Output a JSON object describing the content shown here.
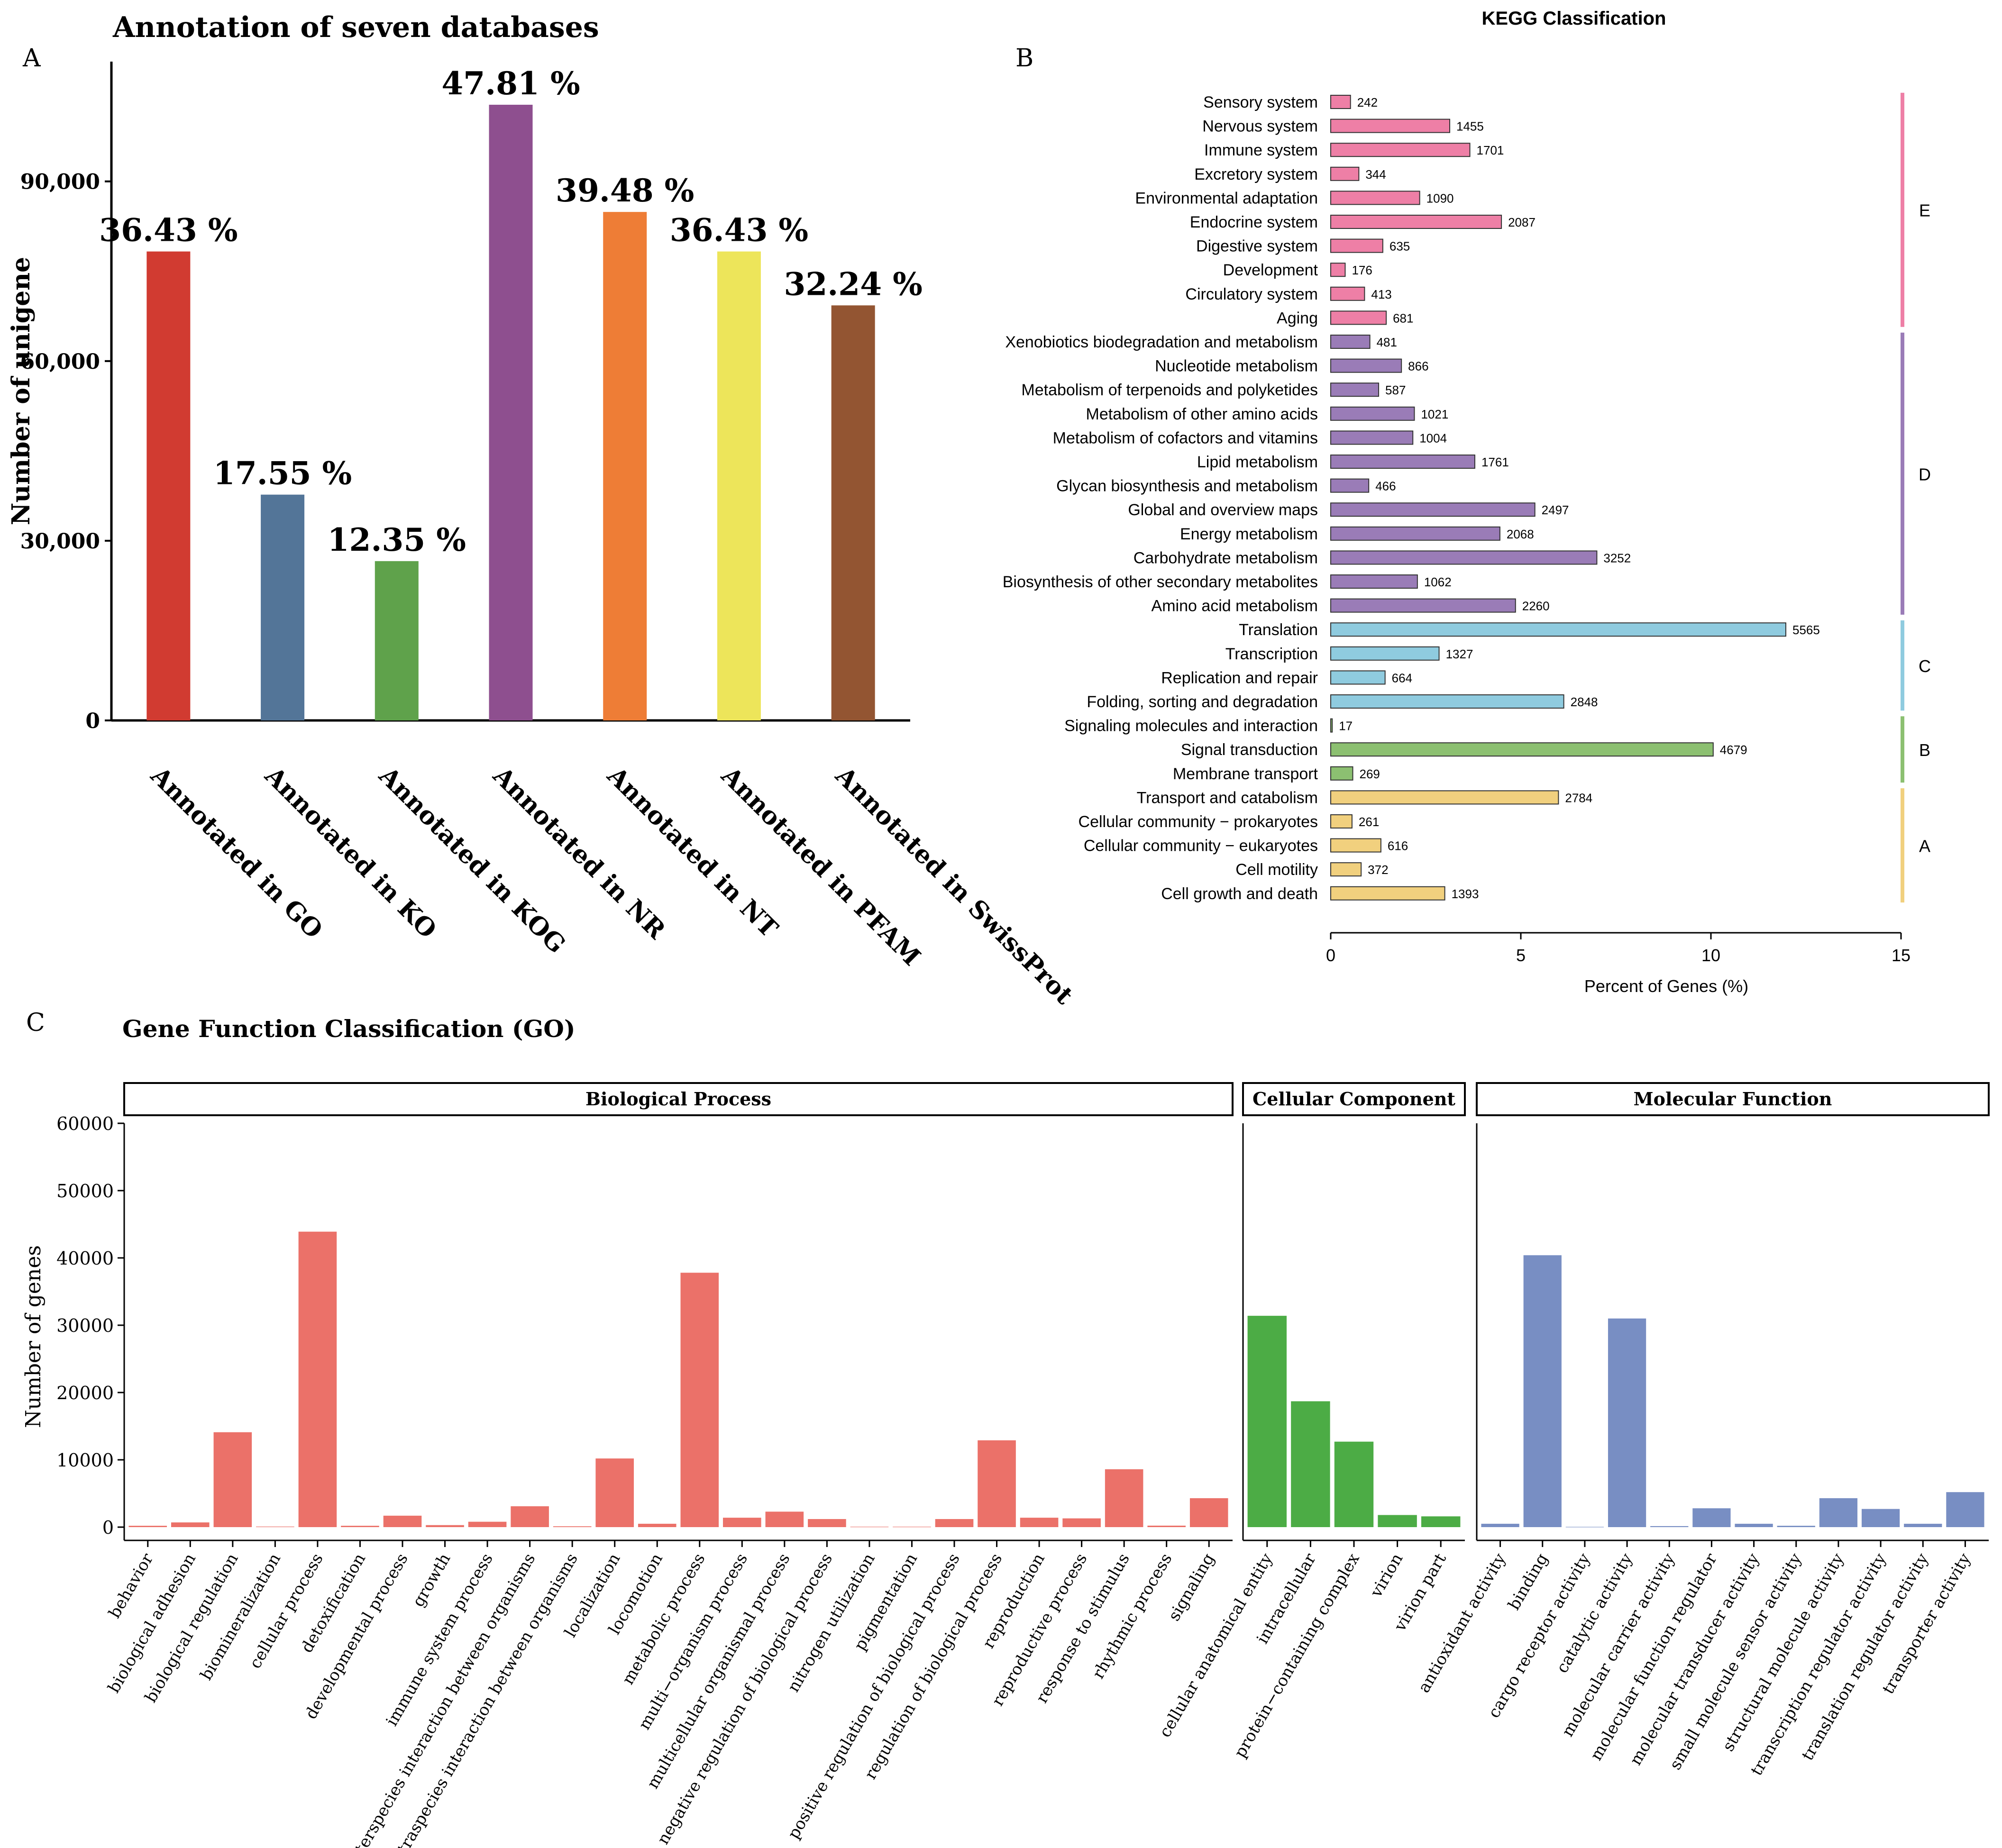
{
  "panel_labels": {
    "a": "A",
    "b": "B",
    "c": "C"
  },
  "chart_data": [
    {
      "id": "A",
      "type": "bar",
      "title": "Annotation of seven  databases",
      "xlabel": "",
      "ylabel": "Number of unigene",
      "ylim": [
        0,
        110000
      ],
      "yticks": [
        0,
        30000,
        60000,
        90000
      ],
      "ytick_labels": [
        "0",
        "30,000",
        "60,000",
        "90,000"
      ],
      "grid": false,
      "categories": [
        "Annotated in GO",
        "Annotated in KO",
        "Annotated in KOG",
        "Annotated in NR",
        "Annotated in NT",
        "Annotated in PFAM",
        "Annotated in SwissProt"
      ],
      "values": [
        78300,
        37700,
        26600,
        102800,
        84900,
        78300,
        69300
      ],
      "data_labels": [
        "36.43 %",
        "17.55 %",
        "12.35 %",
        "47.81 %",
        "39.48 %",
        "36.43 %",
        "32.24 %"
      ],
      "colors": [
        "#d13b31",
        "#537598",
        "#5fa24b",
        "#8e4f8f",
        "#ee7d36",
        "#ede55a",
        "#935532"
      ]
    },
    {
      "id": "B",
      "type": "bar",
      "orientation": "horizontal",
      "title": "KEGG Classification",
      "xlabel": "Percent of Genes (%)",
      "ylabel": "",
      "xlim": [
        0,
        15
      ],
      "xticks": [
        0,
        5,
        10,
        15
      ],
      "grid": false,
      "categories": [
        "Sensory system",
        "Nervous system",
        "Immune system",
        "Excretory system",
        "Environmental adaptation",
        "Endocrine system",
        "Digestive system",
        "Development",
        "Circulatory system",
        "Aging",
        "Xenobiotics biodegradation and metabolism",
        "Nucleotide metabolism",
        "Metabolism of terpenoids and polyketides",
        "Metabolism of other amino acids",
        "Metabolism of cofactors and vitamins",
        "Lipid metabolism",
        "Glycan biosynthesis and metabolism",
        "Global and overview maps",
        "Energy metabolism",
        "Carbohydrate metabolism",
        "Biosynthesis of other secondary metabolites",
        "Amino acid metabolism",
        "Translation",
        "Transcription",
        "Replication and repair",
        "Folding, sorting and degradation",
        "Signaling molecules and interaction",
        "Signal transduction",
        "Membrane transport",
        "Transport and catabolism",
        "Cellular community − prokaryotes",
        "Cellular community − eukaryotes",
        "Cell motility",
        "Cell growth and death"
      ],
      "counts": [
        242,
        1455,
        1701,
        344,
        1090,
        2087,
        635,
        176,
        413,
        681,
        481,
        866,
        587,
        1021,
        1004,
        1761,
        466,
        2497,
        2068,
        3252,
        1062,
        2260,
        5565,
        1327,
        664,
        2848,
        17,
        4679,
        269,
        2784,
        261,
        616,
        372,
        1393
      ],
      "values": [
        0.52,
        3.13,
        3.66,
        0.74,
        2.34,
        4.49,
        1.37,
        0.38,
        0.89,
        1.46,
        1.03,
        1.86,
        1.26,
        2.2,
        2.16,
        3.79,
        1.0,
        5.37,
        4.45,
        7.0,
        2.28,
        4.86,
        11.97,
        2.85,
        1.43,
        6.13,
        0.04,
        10.06,
        0.58,
        5.99,
        0.56,
        1.32,
        0.8,
        3.0
      ],
      "groups": [
        "E",
        "E",
        "E",
        "E",
        "E",
        "E",
        "E",
        "E",
        "E",
        "E",
        "D",
        "D",
        "D",
        "D",
        "D",
        "D",
        "D",
        "D",
        "D",
        "D",
        "D",
        "D",
        "C",
        "C",
        "C",
        "C",
        "B",
        "B",
        "B",
        "A",
        "A",
        "A",
        "A",
        "A"
      ],
      "group_labels": [
        "E",
        "D",
        "C",
        "B",
        "A"
      ],
      "group_colors": {
        "E": "#ee7fa6",
        "D": "#9a7cb7",
        "C": "#8fcbdf",
        "B": "#8cc071",
        "A": "#f1d07e"
      }
    },
    {
      "id": "C",
      "type": "bar",
      "title": "Gene Function Classification (GO)",
      "xlabel": "",
      "ylabel": "Number of genes",
      "ylim": [
        0,
        60000
      ],
      "yticks": [
        0,
        10000,
        20000,
        30000,
        40000,
        50000,
        60000
      ],
      "grid": false,
      "facets": [
        {
          "name": "Biological Process",
          "color": "#eb7169",
          "categories": [
            "behavior",
            "biological adhesion",
            "biological regulation",
            "biomineralization",
            "cellular process",
            "detoxification",
            "developmental process",
            "growth",
            "immune system process",
            "interspecies interaction between organisms",
            "intraspecies interaction between organisms",
            "localization",
            "locomotion",
            "metabolic process",
            "multi−organism process",
            "multicellular organismal process",
            "negative regulation of biological process",
            "nitrogen utilization",
            "pigmentation",
            "positive regulation of biological process",
            "regulation of biological process",
            "reproduction",
            "reproductive process",
            "response to stimulus",
            "rhythmic process",
            "signaling"
          ],
          "values": [
            200,
            700,
            14100,
            80,
            43900,
            200,
            1700,
            300,
            800,
            3100,
            120,
            10200,
            500,
            37800,
            1400,
            2300,
            1200,
            60,
            60,
            1200,
            12900,
            1400,
            1300,
            8600,
            220,
            4300
          ]
        },
        {
          "name": "Cellular Component",
          "color": "#4cac45",
          "categories": [
            "cellular anatomical entity",
            "intracellular",
            "protein−containing complex",
            "virion",
            "virion part"
          ],
          "values": [
            31400,
            18700,
            12700,
            1800,
            1600
          ]
        },
        {
          "name": "Molecular Function",
          "color": "#788ec3",
          "categories": [
            "antioxidant activity",
            "binding",
            "cargo receptor activity",
            "catalytic activity",
            "molecular carrier activity",
            "molecular function regulator",
            "molecular transducer activity",
            "small molecule sensor activity",
            "structural molecule activity",
            "transcription regulator activity",
            "translation regulator activity",
            "transporter activity"
          ],
          "values": [
            500,
            40400,
            40,
            31000,
            150,
            2800,
            500,
            200,
            4300,
            2700,
            500,
            5200
          ]
        }
      ]
    }
  ]
}
